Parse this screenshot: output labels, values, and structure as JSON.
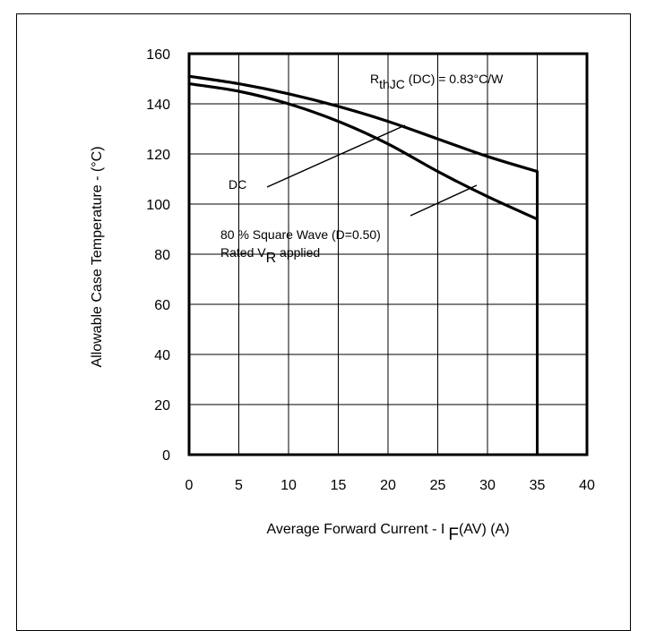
{
  "chart_data": {
    "type": "line",
    "title": "",
    "xlabel": {
      "main": "Average Forward Current - I",
      "sub": "F",
      "tail": "(AV) (A)"
    },
    "ylabel": "Allowable Case Temperature - (°C)",
    "xlim": [
      0,
      40
    ],
    "ylim": [
      0,
      160
    ],
    "xticks": [
      0,
      5,
      10,
      15,
      20,
      25,
      30,
      35,
      40
    ],
    "yticks": [
      0,
      20,
      40,
      60,
      80,
      100,
      120,
      140,
      160
    ],
    "grid": true,
    "series": [
      {
        "x": [
          0,
          5,
          10,
          15,
          20,
          25,
          30,
          35
        ],
        "y": [
          151,
          148,
          144,
          139,
          133,
          126,
          119,
          113
        ]
      },
      {
        "x": [
          0,
          5,
          10,
          15,
          20,
          25,
          30,
          35
        ],
        "y": [
          148,
          145,
          140,
          133,
          124,
          113,
          103,
          94
        ]
      }
    ],
    "cutoff": {
      "x": 35,
      "y_top": 113,
      "y_bottom": 0
    },
    "annotations": {
      "rth": {
        "main": "R",
        "sub": "thJC",
        "tail": " (DC) = 0.83°C/W"
      },
      "dc": "DC",
      "square_wave": "80 % Square Wave (D=0.50)",
      "rated": {
        "main": "Rated V",
        "sub": "R",
        "tail": " applied"
      }
    }
  }
}
